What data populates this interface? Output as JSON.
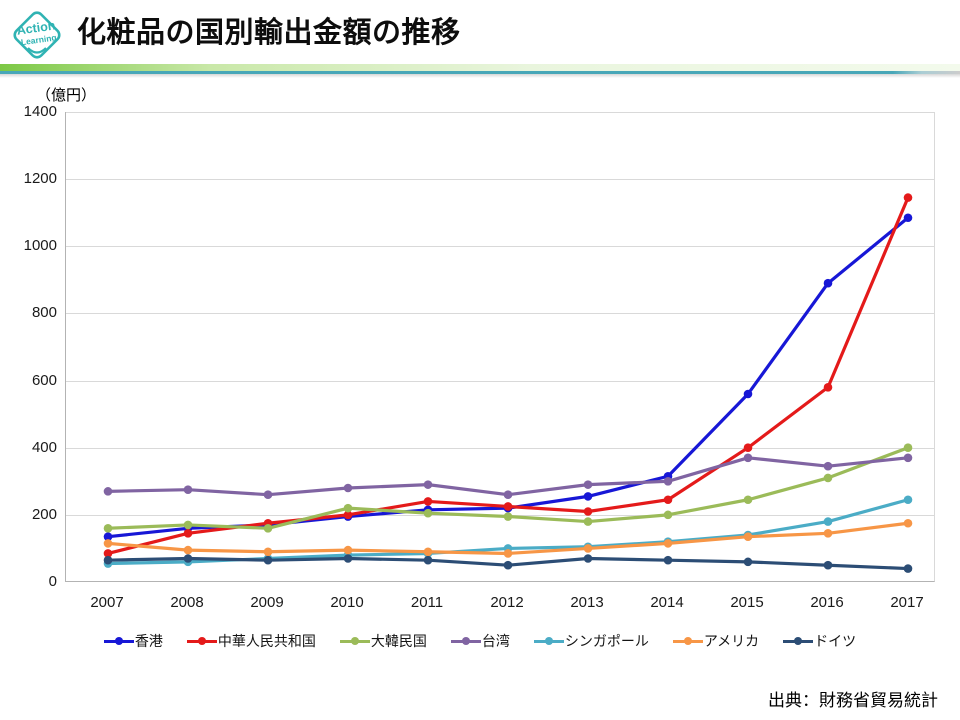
{
  "header": {
    "logo": {
      "line1": "Action",
      "line2": "Learning",
      "color": "#2fb3b3"
    },
    "title": "化粧品の国別輸出金額の推移"
  },
  "chart": {
    "unit_label": "（億円）",
    "source": "出典：財務省貿易統計"
  },
  "chart_data": {
    "type": "line",
    "title": "化粧品の国別輸出金額の推移",
    "xlabel": "",
    "ylabel": "（億円）",
    "ylim": [
      0,
      1400
    ],
    "y_ticks": [
      0,
      200,
      400,
      600,
      800,
      1000,
      1200,
      1400
    ],
    "grid": true,
    "legend_position": "bottom",
    "x": [
      2007,
      2008,
      2009,
      2010,
      2011,
      2012,
      2013,
      2014,
      2015,
      2016,
      2017
    ],
    "series": [
      {
        "name": "香港",
        "color": "#1717d6",
        "values": [
          135,
          160,
          170,
          195,
          215,
          220,
          255,
          315,
          560,
          890,
          1085
        ]
      },
      {
        "name": "中華人民共和国",
        "color": "#e41a1a",
        "values": [
          85,
          145,
          175,
          200,
          240,
          225,
          210,
          245,
          400,
          580,
          1145
        ]
      },
      {
        "name": "大韓民国",
        "color": "#9bbb59",
        "values": [
          160,
          170,
          160,
          220,
          205,
          195,
          180,
          200,
          245,
          310,
          400
        ]
      },
      {
        "name": "台湾",
        "color": "#8064a2",
        "values": [
          270,
          275,
          260,
          280,
          290,
          260,
          290,
          300,
          370,
          345,
          370
        ]
      },
      {
        "name": "シンガポール",
        "color": "#4bacc6",
        "values": [
          55,
          60,
          70,
          80,
          85,
          100,
          105,
          120,
          140,
          180,
          245
        ]
      },
      {
        "name": "アメリカ",
        "color": "#f79646",
        "values": [
          115,
          95,
          90,
          95,
          90,
          85,
          100,
          115,
          135,
          145,
          175
        ]
      },
      {
        "name": "ドイツ",
        "color": "#2c4d75",
        "values": [
          65,
          70,
          65,
          70,
          65,
          50,
          70,
          65,
          60,
          50,
          40
        ]
      }
    ]
  }
}
